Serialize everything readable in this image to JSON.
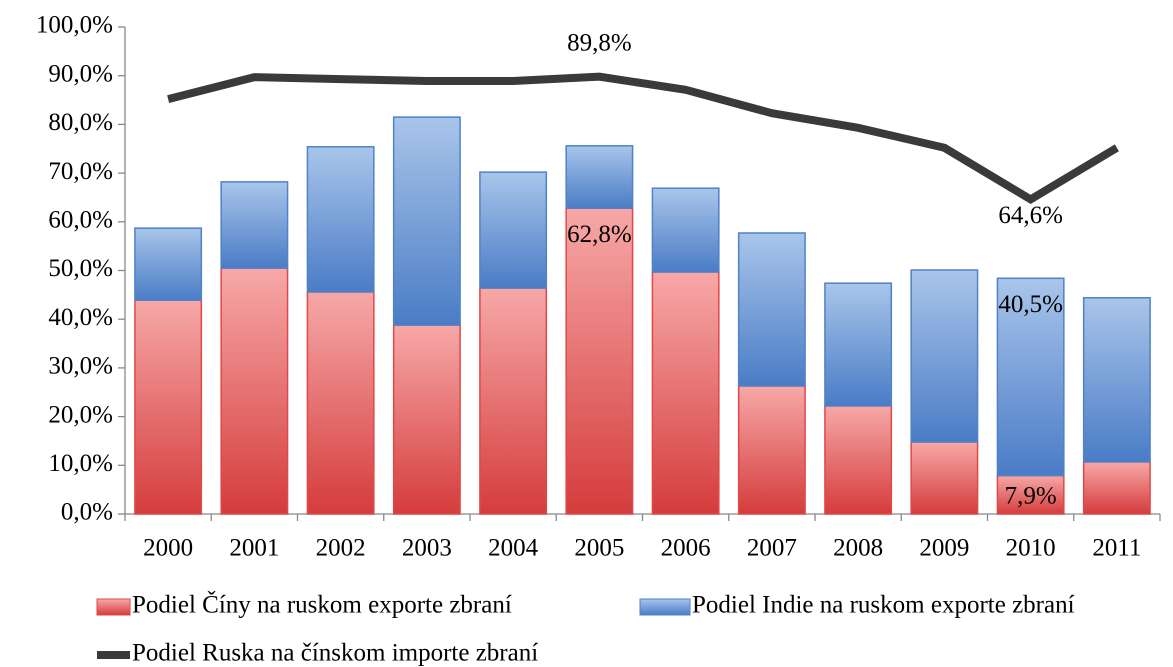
{
  "chart_data": {
    "type": "bar_line",
    "categories": [
      "2000",
      "2001",
      "2002",
      "2003",
      "2004",
      "2005",
      "2006",
      "2007",
      "2008",
      "2009",
      "2010",
      "2011"
    ],
    "series": [
      {
        "name": "Podiel Číny na ruskom exporte zbraní",
        "color": "#e04848",
        "kind": "bar",
        "values": [
          43.9,
          50.5,
          45.6,
          38.8,
          46.4,
          62.8,
          49.7,
          26.3,
          22.2,
          14.8,
          7.9,
          10.7
        ],
        "value_labels": [
          null,
          null,
          null,
          null,
          null,
          "62,8%",
          null,
          null,
          null,
          null,
          "7,9%",
          null
        ]
      },
      {
        "name": "Podiel Indie na ruskom exporte zbraní",
        "color": "#4f82c9",
        "kind": "bar",
        "values": [
          14.8,
          17.7,
          29.8,
          42.7,
          23.8,
          12.8,
          17.2,
          31.4,
          25.2,
          35.3,
          40.5,
          33.7
        ],
        "value_labels": [
          null,
          null,
          null,
          null,
          null,
          null,
          null,
          null,
          null,
          null,
          "40,5%",
          null
        ]
      },
      {
        "name": "Podiel Ruska na čínskom importe zbraní",
        "color": "#3a3a3a",
        "kind": "line",
        "values": [
          85.2,
          89.7,
          89.3,
          88.9,
          88.9,
          89.8,
          87.1,
          82.3,
          79.3,
          75.2,
          64.6,
          75.2
        ],
        "value_labels": [
          null,
          null,
          null,
          null,
          null,
          "89,8%",
          null,
          null,
          null,
          null,
          "64,6%",
          null
        ]
      }
    ],
    "stacked": true,
    "ylim": [
      0,
      100
    ],
    "yticks": [
      {
        "value": 0,
        "label": "0,0%"
      },
      {
        "value": 10,
        "label": "10,0%"
      },
      {
        "value": 20,
        "label": "20,0%"
      },
      {
        "value": 30,
        "label": "30,0%"
      },
      {
        "value": 40,
        "label": "40,0%"
      },
      {
        "value": 50,
        "label": "50,0%"
      },
      {
        "value": 60,
        "label": "60,0%"
      },
      {
        "value": 70,
        "label": "70,0%"
      },
      {
        "value": 80,
        "label": "80,0%"
      },
      {
        "value": 90,
        "label": "90,0%"
      },
      {
        "value": 100,
        "label": "100,0%"
      }
    ],
    "legend": "bottom"
  }
}
